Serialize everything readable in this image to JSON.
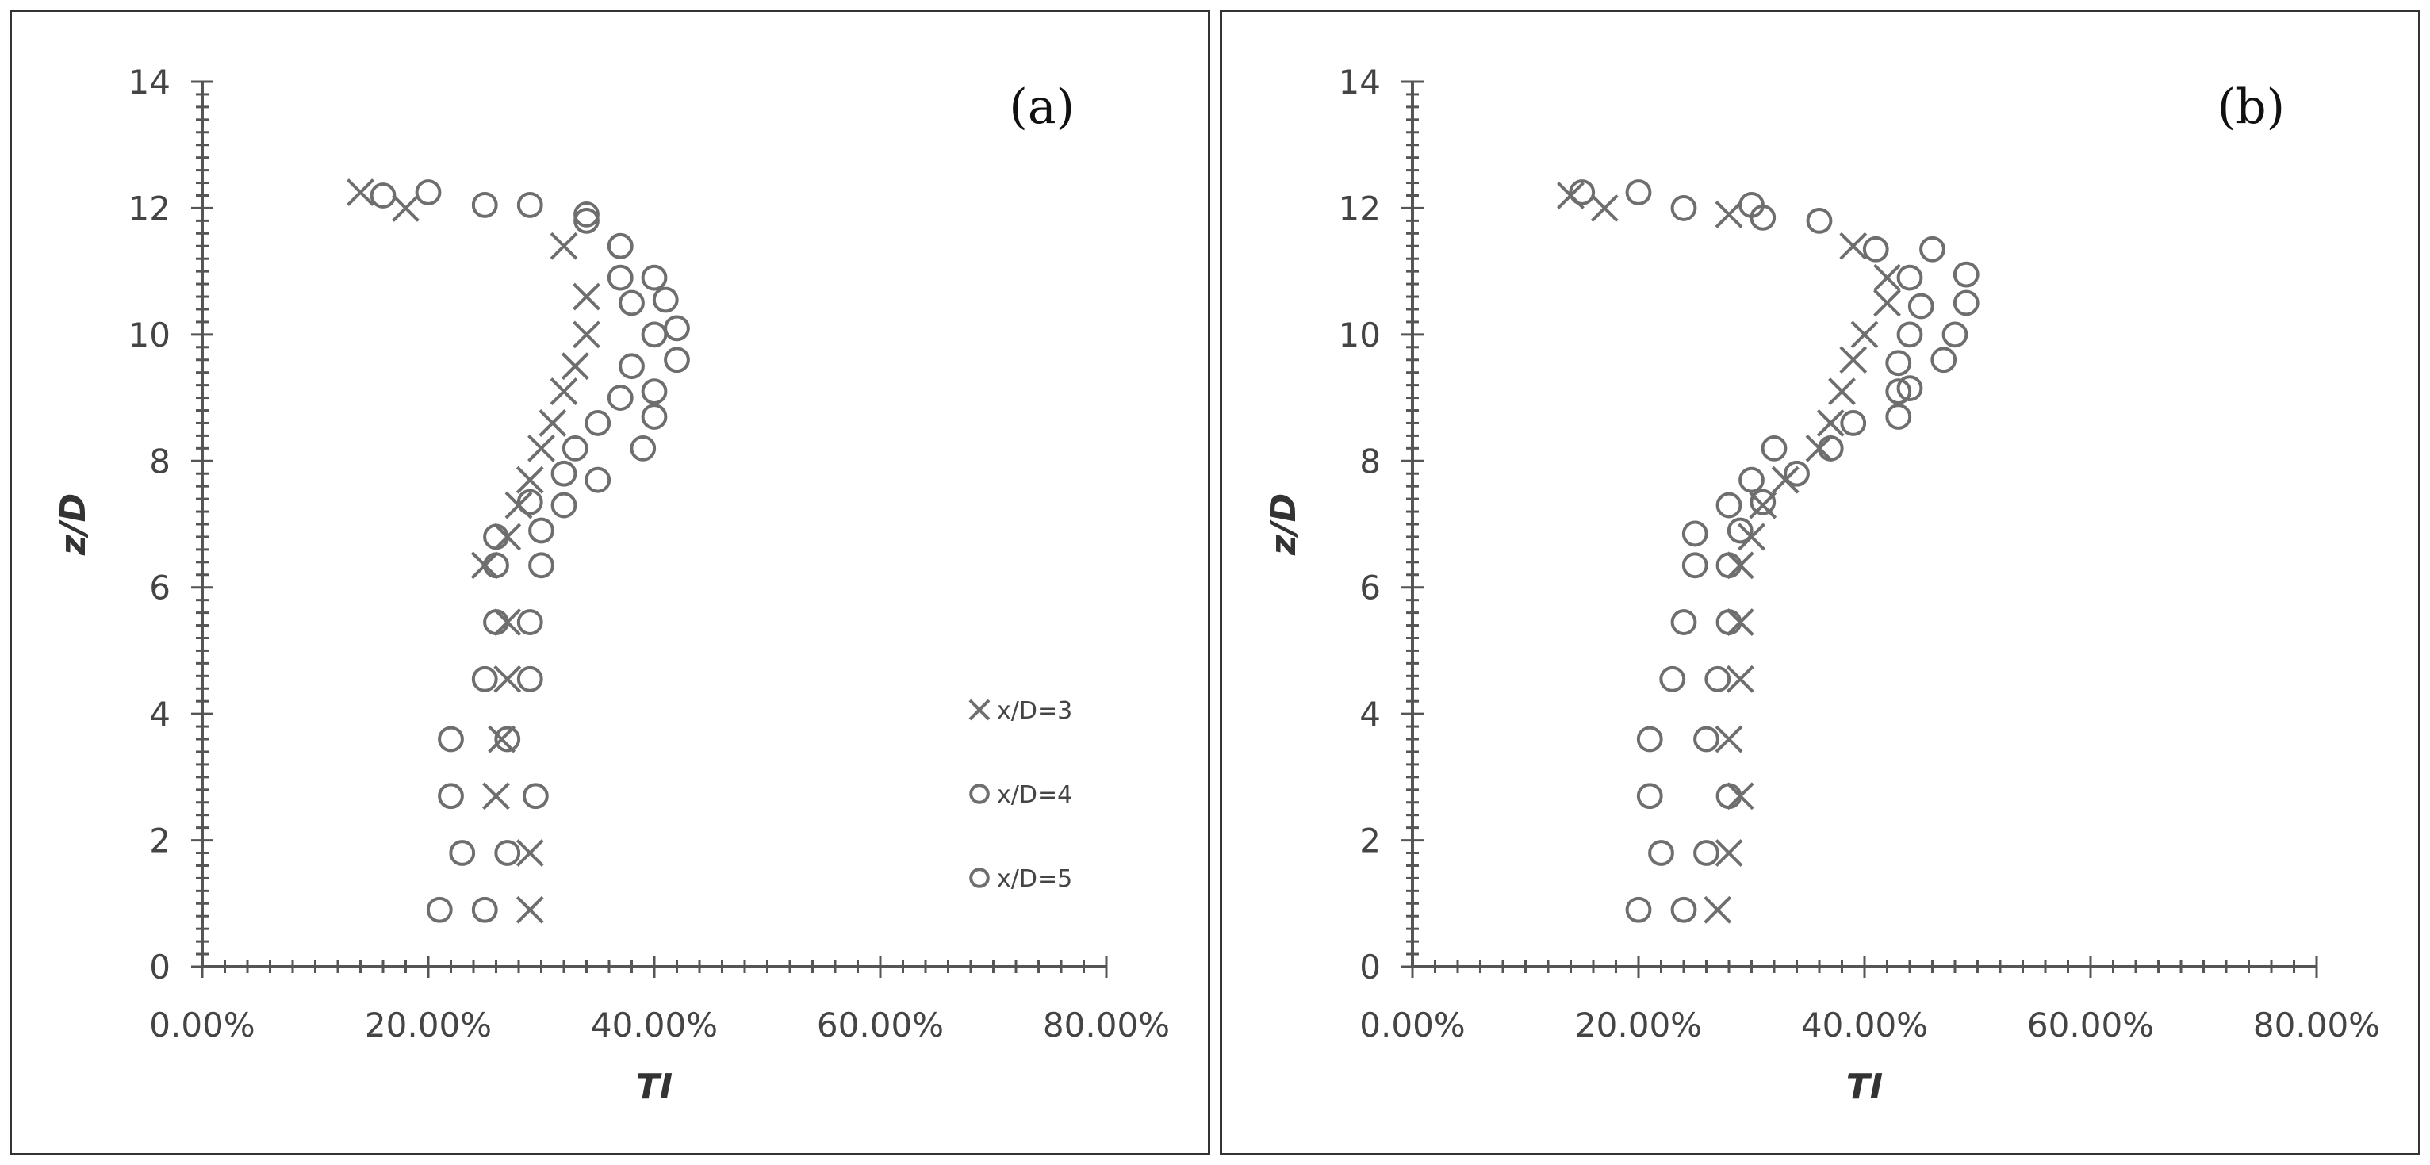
{
  "chart_data": [
    {
      "type": "scatter",
      "panel_label": "(a)",
      "xlabel": "TI",
      "ylabel": "z/D",
      "xlim": [
        0,
        0.8
      ],
      "ylim": [
        0,
        14
      ],
      "x_ticks": [
        "0.00%",
        "20.00%",
        "40.00%",
        "60.00%",
        "80.00%"
      ],
      "y_ticks": [
        "0",
        "2",
        "4",
        "6",
        "8",
        "10",
        "12",
        "14"
      ],
      "legend_position": "right",
      "series": [
        {
          "name": "x/D=3",
          "marker": "x",
          "points": [
            [
              0.29,
              0.9
            ],
            [
              0.29,
              1.8
            ],
            [
              0.26,
              2.7
            ],
            [
              0.265,
              3.6
            ],
            [
              0.27,
              4.55
            ],
            [
              0.27,
              5.45
            ],
            [
              0.25,
              6.35
            ],
            [
              0.27,
              6.8
            ],
            [
              0.28,
              7.3
            ],
            [
              0.29,
              7.7
            ],
            [
              0.3,
              8.2
            ],
            [
              0.31,
              8.6
            ],
            [
              0.32,
              9.1
            ],
            [
              0.33,
              9.5
            ],
            [
              0.34,
              10.0
            ],
            [
              0.34,
              10.6
            ],
            [
              0.32,
              11.4
            ],
            [
              0.18,
              12.0
            ],
            [
              0.14,
              12.25
            ]
          ]
        },
        {
          "name": "x/D=4",
          "marker": "o",
          "points": [
            [
              0.25,
              0.9
            ],
            [
              0.27,
              1.8
            ],
            [
              0.295,
              2.7
            ],
            [
              0.27,
              3.6
            ],
            [
              0.29,
              4.55
            ],
            [
              0.29,
              5.45
            ],
            [
              0.3,
              6.35
            ],
            [
              0.3,
              6.9
            ],
            [
              0.29,
              7.35
            ],
            [
              0.32,
              7.8
            ],
            [
              0.33,
              8.2
            ],
            [
              0.35,
              8.6
            ],
            [
              0.37,
              9.0
            ],
            [
              0.38,
              9.5
            ],
            [
              0.4,
              10.0
            ],
            [
              0.38,
              10.5
            ],
            [
              0.37,
              10.9
            ],
            [
              0.37,
              11.4
            ],
            [
              0.34,
              11.8
            ],
            [
              0.29,
              12.05
            ],
            [
              0.16,
              12.2
            ]
          ]
        },
        {
          "name": "x/D=5",
          "marker": "o",
          "points": [
            [
              0.21,
              0.9
            ],
            [
              0.23,
              1.8
            ],
            [
              0.22,
              2.7
            ],
            [
              0.22,
              3.6
            ],
            [
              0.25,
              4.55
            ],
            [
              0.26,
              5.45
            ],
            [
              0.26,
              6.35
            ],
            [
              0.26,
              6.8
            ],
            [
              0.32,
              7.3
            ],
            [
              0.35,
              7.7
            ],
            [
              0.39,
              8.2
            ],
            [
              0.4,
              8.7
            ],
            [
              0.4,
              9.1
            ],
            [
              0.42,
              9.6
            ],
            [
              0.42,
              10.1
            ],
            [
              0.41,
              10.55
            ],
            [
              0.4,
              10.9
            ],
            [
              0.37,
              11.4
            ],
            [
              0.34,
              11.9
            ],
            [
              0.25,
              12.05
            ],
            [
              0.2,
              12.25
            ]
          ]
        }
      ]
    },
    {
      "type": "scatter",
      "panel_label": "(b)",
      "xlabel": "TI",
      "ylabel": "z/D",
      "xlim": [
        0,
        0.8
      ],
      "ylim": [
        0,
        14
      ],
      "x_ticks": [
        "0.00%",
        "20.00%",
        "40.00%",
        "60.00%",
        "80.00%"
      ],
      "y_ticks": [
        "0",
        "2",
        "4",
        "6",
        "8",
        "10",
        "12",
        "14"
      ],
      "series": [
        {
          "name": "x/D=3",
          "marker": "x",
          "points": [
            [
              0.27,
              0.9
            ],
            [
              0.28,
              1.8
            ],
            [
              0.29,
              2.7
            ],
            [
              0.28,
              3.6
            ],
            [
              0.29,
              4.55
            ],
            [
              0.29,
              5.45
            ],
            [
              0.29,
              6.35
            ],
            [
              0.3,
              6.8
            ],
            [
              0.31,
              7.3
            ],
            [
              0.33,
              7.7
            ],
            [
              0.36,
              8.2
            ],
            [
              0.37,
              8.6
            ],
            [
              0.38,
              9.1
            ],
            [
              0.39,
              9.6
            ],
            [
              0.4,
              10.0
            ],
            [
              0.42,
              10.5
            ],
            [
              0.42,
              10.9
            ],
            [
              0.39,
              11.4
            ],
            [
              0.28,
              11.9
            ],
            [
              0.17,
              12.0
            ],
            [
              0.14,
              12.2
            ]
          ]
        },
        {
          "name": "x/D=4",
          "marker": "o",
          "points": [
            [
              0.24,
              0.9
            ],
            [
              0.26,
              1.8
            ],
            [
              0.28,
              2.7
            ],
            [
              0.26,
              3.6
            ],
            [
              0.27,
              4.55
            ],
            [
              0.28,
              5.45
            ],
            [
              0.28,
              6.35
            ],
            [
              0.29,
              6.9
            ],
            [
              0.31,
              7.35
            ],
            [
              0.34,
              7.8
            ],
            [
              0.37,
              8.2
            ],
            [
              0.39,
              8.6
            ],
            [
              0.43,
              9.1
            ],
            [
              0.43,
              9.55
            ],
            [
              0.44,
              10.0
            ],
            [
              0.45,
              10.45
            ],
            [
              0.44,
              10.9
            ],
            [
              0.41,
              11.35
            ],
            [
              0.36,
              11.8
            ],
            [
              0.3,
              12.05
            ],
            [
              0.15,
              12.25
            ]
          ]
        },
        {
          "name": "x/D=5",
          "marker": "o",
          "points": [
            [
              0.2,
              0.9
            ],
            [
              0.22,
              1.8
            ],
            [
              0.21,
              2.7
            ],
            [
              0.21,
              3.6
            ],
            [
              0.23,
              4.55
            ],
            [
              0.24,
              5.45
            ],
            [
              0.25,
              6.35
            ],
            [
              0.25,
              6.85
            ],
            [
              0.28,
              7.3
            ],
            [
              0.3,
              7.7
            ],
            [
              0.32,
              8.2
            ],
            [
              0.43,
              8.7
            ],
            [
              0.44,
              9.15
            ],
            [
              0.47,
              9.6
            ],
            [
              0.48,
              10.0
            ],
            [
              0.49,
              10.5
            ],
            [
              0.49,
              10.95
            ],
            [
              0.46,
              11.35
            ],
            [
              0.31,
              11.85
            ],
            [
              0.24,
              12.0
            ],
            [
              0.2,
              12.25
            ]
          ]
        }
      ]
    }
  ]
}
